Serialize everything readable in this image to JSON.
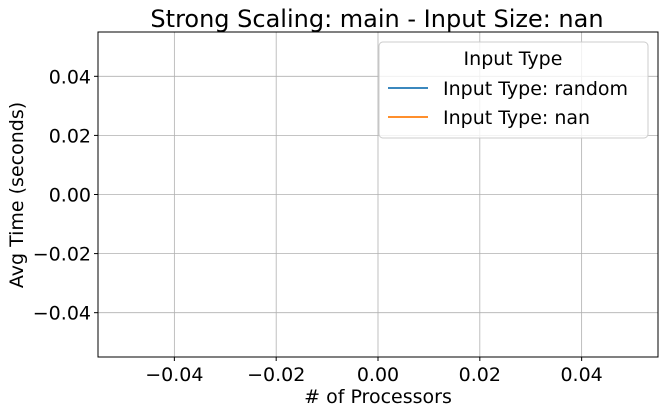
{
  "chart_data": {
    "type": "line",
    "title": "Strong Scaling: main - Input Size: nan",
    "xlabel": "# of Processors",
    "ylabel": "Avg Time (seconds)",
    "xlim": [
      -0.055,
      0.055
    ],
    "ylim": [
      -0.055,
      0.055
    ],
    "x_ticks": [
      -0.04,
      -0.02,
      0.0,
      0.02,
      0.04
    ],
    "y_ticks": [
      -0.04,
      -0.02,
      0.0,
      0.02,
      0.04
    ],
    "x_tick_labels": [
      "−0.04",
      "−0.02",
      "0.00",
      "0.02",
      "0.04"
    ],
    "y_tick_labels": [
      "−0.04",
      "−0.02",
      "0.00",
      "0.02",
      "0.04"
    ],
    "grid": true,
    "legend": {
      "title": "Input Type",
      "placement": "top-right"
    },
    "series": [
      {
        "name": "Input Type: random",
        "color": "#1f77b4",
        "x": [],
        "y": []
      },
      {
        "name": "Input Type: nan",
        "color": "#ff7f0e",
        "x": [],
        "y": []
      }
    ]
  }
}
